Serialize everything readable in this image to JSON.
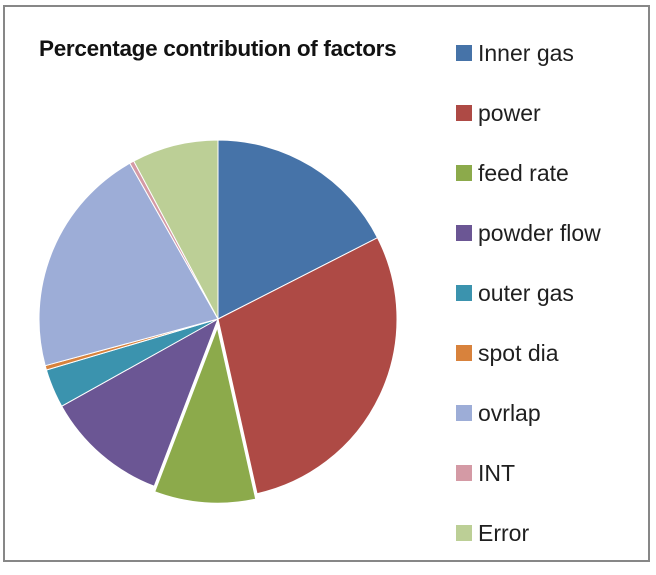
{
  "chart_data": {
    "type": "pie",
    "title": "Percentage contribution of factors",
    "legend_position": "right",
    "start_angle_deg": 0,
    "direction": "clockwise",
    "unit": "percent",
    "slices": [
      {
        "label": "Inner gas",
        "value": 17.5,
        "color": "#4673a8",
        "exploded": false
      },
      {
        "label": "power",
        "value": 29.0,
        "color": "#ae4a45",
        "exploded": false
      },
      {
        "label": "feed rate",
        "value": 9.3,
        "color": "#8caa4b",
        "exploded": true
      },
      {
        "label": "powder flow",
        "value": 11.1,
        "color": "#6b5694",
        "exploded": false
      },
      {
        "label": "outer gas",
        "value": 3.5,
        "color": "#3b93ae",
        "exploded": false
      },
      {
        "label": "spot dia",
        "value": 0.4,
        "color": "#d8823c",
        "exploded": false
      },
      {
        "label": "ovrlap",
        "value": 21.0,
        "color": "#9dadd7",
        "exploded": false
      },
      {
        "label": "INT",
        "value": 0.4,
        "color": "#d49aa5",
        "exploded": false
      },
      {
        "label": "Error",
        "value": 7.8,
        "color": "#bccf96",
        "exploded": false
      }
    ]
  },
  "frame": {
    "border_color": "#878787",
    "background": "#ffffff"
  }
}
